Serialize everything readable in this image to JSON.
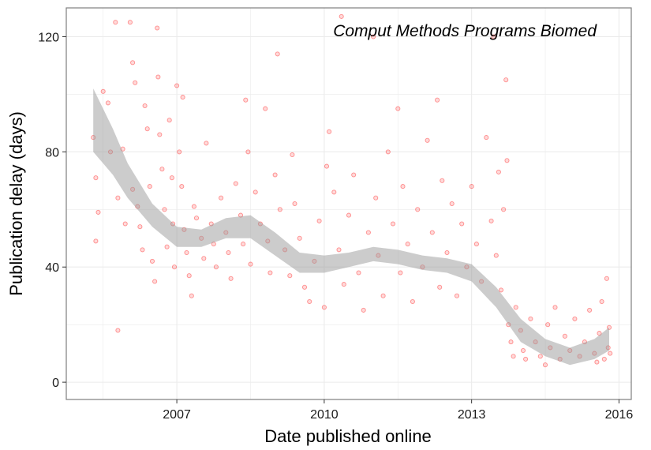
{
  "chart_data": {
    "type": "scatter",
    "title": "",
    "annotation": "Comput Methods Programs Biomed",
    "xlabel": "Date published online",
    "ylabel": "Publication delay (days)",
    "x_ticks": [
      {
        "value": 2007,
        "label": "2007"
      },
      {
        "value": 2010,
        "label": "2010"
      },
      {
        "value": 2013,
        "label": "2013"
      },
      {
        "value": 2016,
        "label": "2016"
      }
    ],
    "y_ticks": [
      {
        "value": 0,
        "label": "0"
      },
      {
        "value": 40,
        "label": "40"
      },
      {
        "value": 80,
        "label": "80"
      },
      {
        "value": 120,
        "label": "120"
      }
    ],
    "xlim": [
      2004.75,
      2016.25
    ],
    "ylim": [
      -6,
      130
    ],
    "grid": true,
    "legend": "none",
    "colors": {
      "points": "#ff0000",
      "smooth_band": "#999999",
      "panel_border": "#7f7f7f",
      "grid": "#ebebeb"
    },
    "smooth_band": [
      {
        "x": 2005.3,
        "low": 80,
        "high": 102
      },
      {
        "x": 2005.7,
        "low": 72,
        "high": 88
      },
      {
        "x": 2006.0,
        "low": 64,
        "high": 76
      },
      {
        "x": 2006.5,
        "low": 54,
        "high": 62
      },
      {
        "x": 2007.0,
        "low": 47,
        "high": 54
      },
      {
        "x": 2007.5,
        "low": 47,
        "high": 53
      },
      {
        "x": 2008.0,
        "low": 50,
        "high": 57
      },
      {
        "x": 2008.5,
        "low": 50,
        "high": 58
      },
      {
        "x": 2009.0,
        "low": 44,
        "high": 52
      },
      {
        "x": 2009.5,
        "low": 38,
        "high": 45
      },
      {
        "x": 2010.0,
        "low": 38,
        "high": 44
      },
      {
        "x": 2010.5,
        "low": 40,
        "high": 45
      },
      {
        "x": 2011.0,
        "low": 42,
        "high": 47
      },
      {
        "x": 2011.5,
        "low": 41,
        "high": 46
      },
      {
        "x": 2012.0,
        "low": 39,
        "high": 44
      },
      {
        "x": 2012.5,
        "low": 38,
        "high": 43
      },
      {
        "x": 2013.0,
        "low": 35,
        "high": 41
      },
      {
        "x": 2013.5,
        "low": 26,
        "high": 33
      },
      {
        "x": 2014.0,
        "low": 14,
        "high": 22
      },
      {
        "x": 2014.5,
        "low": 9,
        "high": 15
      },
      {
        "x": 2015.0,
        "low": 6,
        "high": 12
      },
      {
        "x": 2015.5,
        "low": 8,
        "high": 15
      },
      {
        "x": 2015.8,
        "low": 11,
        "high": 19
      }
    ],
    "points": [
      [
        2005.3,
        85
      ],
      [
        2005.35,
        71
      ],
      [
        2005.4,
        59
      ],
      [
        2005.35,
        49
      ],
      [
        2005.5,
        101
      ],
      [
        2005.6,
        97
      ],
      [
        2005.75,
        125
      ],
      [
        2005.65,
        80
      ],
      [
        2005.8,
        64
      ],
      [
        2005.8,
        18
      ],
      [
        2005.9,
        81
      ],
      [
        2005.95,
        55
      ],
      [
        2006.05,
        125
      ],
      [
        2006.1,
        111
      ],
      [
        2006.15,
        104
      ],
      [
        2006.1,
        67
      ],
      [
        2006.2,
        61
      ],
      [
        2006.25,
        54
      ],
      [
        2006.3,
        46
      ],
      [
        2006.35,
        96
      ],
      [
        2006.4,
        88
      ],
      [
        2006.45,
        68
      ],
      [
        2006.5,
        42
      ],
      [
        2006.55,
        35
      ],
      [
        2006.6,
        123
      ],
      [
        2006.62,
        106
      ],
      [
        2006.65,
        86
      ],
      [
        2006.7,
        74
      ],
      [
        2006.75,
        60
      ],
      [
        2006.8,
        47
      ],
      [
        2006.85,
        91
      ],
      [
        2006.9,
        71
      ],
      [
        2006.92,
        55
      ],
      [
        2006.95,
        40
      ],
      [
        2007.0,
        103
      ],
      [
        2007.05,
        80
      ],
      [
        2007.1,
        68
      ],
      [
        2007.12,
        99
      ],
      [
        2007.15,
        53
      ],
      [
        2007.2,
        45
      ],
      [
        2007.25,
        37
      ],
      [
        2007.3,
        30
      ],
      [
        2007.35,
        61
      ],
      [
        2007.4,
        57
      ],
      [
        2007.5,
        50
      ],
      [
        2007.55,
        43
      ],
      [
        2007.6,
        83
      ],
      [
        2007.7,
        55
      ],
      [
        2007.75,
        48
      ],
      [
        2007.8,
        40
      ],
      [
        2007.9,
        64
      ],
      [
        2008.0,
        52
      ],
      [
        2008.05,
        45
      ],
      [
        2008.1,
        36
      ],
      [
        2008.2,
        69
      ],
      [
        2008.3,
        58
      ],
      [
        2008.35,
        48
      ],
      [
        2008.4,
        98
      ],
      [
        2008.45,
        80
      ],
      [
        2008.5,
        41
      ],
      [
        2008.6,
        66
      ],
      [
        2008.7,
        55
      ],
      [
        2008.8,
        95
      ],
      [
        2008.85,
        49
      ],
      [
        2008.9,
        38
      ],
      [
        2009.0,
        72
      ],
      [
        2009.05,
        114
      ],
      [
        2009.1,
        60
      ],
      [
        2009.2,
        46
      ],
      [
        2009.3,
        37
      ],
      [
        2009.35,
        79
      ],
      [
        2009.4,
        62
      ],
      [
        2009.5,
        50
      ],
      [
        2009.6,
        33
      ],
      [
        2009.7,
        28
      ],
      [
        2009.8,
        42
      ],
      [
        2009.9,
        56
      ],
      [
        2010.0,
        26
      ],
      [
        2010.05,
        75
      ],
      [
        2010.1,
        87
      ],
      [
        2010.2,
        66
      ],
      [
        2010.3,
        46
      ],
      [
        2010.35,
        127
      ],
      [
        2010.4,
        34
      ],
      [
        2010.5,
        58
      ],
      [
        2010.6,
        72
      ],
      [
        2010.7,
        38
      ],
      [
        2010.8,
        25
      ],
      [
        2010.9,
        52
      ],
      [
        2011.0,
        120
      ],
      [
        2011.05,
        64
      ],
      [
        2011.1,
        44
      ],
      [
        2011.2,
        30
      ],
      [
        2011.3,
        80
      ],
      [
        2011.4,
        55
      ],
      [
        2011.5,
        95
      ],
      [
        2011.55,
        38
      ],
      [
        2011.6,
        68
      ],
      [
        2011.7,
        48
      ],
      [
        2011.8,
        28
      ],
      [
        2011.9,
        60
      ],
      [
        2012.0,
        40
      ],
      [
        2012.1,
        84
      ],
      [
        2012.2,
        52
      ],
      [
        2012.3,
        98
      ],
      [
        2012.35,
        33
      ],
      [
        2012.4,
        70
      ],
      [
        2012.5,
        45
      ],
      [
        2012.6,
        62
      ],
      [
        2012.7,
        30
      ],
      [
        2012.8,
        55
      ],
      [
        2012.9,
        40
      ],
      [
        2013.0,
        68
      ],
      [
        2013.1,
        48
      ],
      [
        2013.2,
        35
      ],
      [
        2013.3,
        85
      ],
      [
        2013.4,
        56
      ],
      [
        2013.45,
        120
      ],
      [
        2013.5,
        44
      ],
      [
        2013.55,
        73
      ],
      [
        2013.6,
        32
      ],
      [
        2013.65,
        60
      ],
      [
        2013.7,
        105
      ],
      [
        2013.72,
        77
      ],
      [
        2013.75,
        20
      ],
      [
        2013.8,
        14
      ],
      [
        2013.85,
        9
      ],
      [
        2013.9,
        26
      ],
      [
        2014.0,
        18
      ],
      [
        2014.05,
        11
      ],
      [
        2014.1,
        8
      ],
      [
        2014.2,
        22
      ],
      [
        2014.3,
        14
      ],
      [
        2014.4,
        9
      ],
      [
        2014.5,
        6
      ],
      [
        2014.55,
        20
      ],
      [
        2014.6,
        12
      ],
      [
        2014.7,
        26
      ],
      [
        2014.8,
        8
      ],
      [
        2014.9,
        16
      ],
      [
        2015.0,
        11
      ],
      [
        2015.1,
        22
      ],
      [
        2015.2,
        9
      ],
      [
        2015.3,
        14
      ],
      [
        2015.4,
        25
      ],
      [
        2015.5,
        10
      ],
      [
        2015.55,
        7
      ],
      [
        2015.6,
        17
      ],
      [
        2015.65,
        28
      ],
      [
        2015.7,
        8
      ],
      [
        2015.75,
        36
      ],
      [
        2015.8,
        19
      ],
      [
        2015.78,
        12
      ],
      [
        2015.82,
        10
      ]
    ]
  }
}
